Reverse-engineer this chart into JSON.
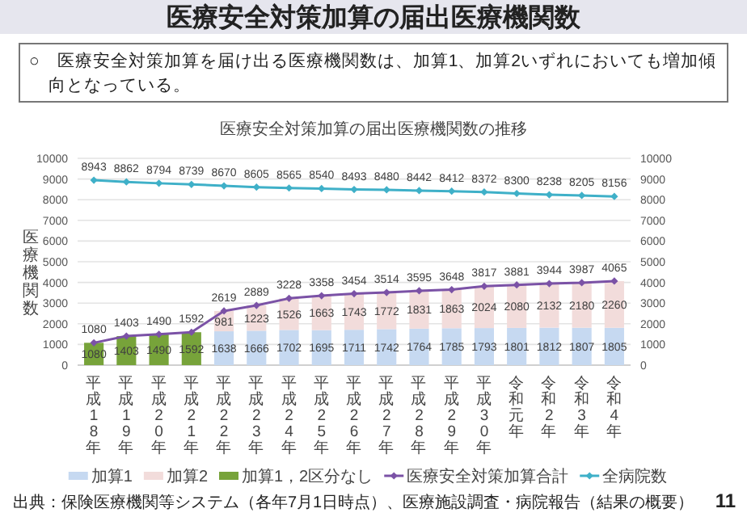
{
  "chart_data": {
    "type": "bar",
    "title": "医療安全対策加算の届出医療機関数",
    "subtitle": "医療安全対策加算の届出医療機関数の推移",
    "annotations": [
      "○　医療安全対策加算を届け出る医療機関数は、加算1、加算2いずれにおいても増加傾向となっている。",
      "出典：保険医療機関等システム（各年7月1日時点）、医療施設調査・病院報告（結果の概要）",
      "11"
    ],
    "ylabel": "医療機関数",
    "categories": [
      "平成18年",
      "平成19年",
      "平成20年",
      "平成21年",
      "平成22年",
      "平成23年",
      "平成24年",
      "平成25年",
      "平成26年",
      "平成27年",
      "平成28年",
      "平成29年",
      "平成30年",
      "令和元年",
      "令和2年",
      "令和3年",
      "令和4年"
    ],
    "stacked": true,
    "data_labels": true,
    "grid": "y",
    "legend": "bottom",
    "marker": "diamond",
    "ylim": [
      0,
      10000
    ],
    "yticks": [
      0,
      1000,
      2000,
      3000,
      4000,
      5000,
      6000,
      7000,
      8000,
      9000,
      10000
    ],
    "y2lim": [
      0,
      10000
    ],
    "y2ticks": [
      0,
      1000,
      2000,
      3000,
      4000,
      5000,
      6000,
      7000,
      8000,
      9000,
      10000
    ],
    "series": [
      {
        "name": "加算1",
        "color": "#c6d9f1",
        "values": [
          null,
          null,
          null,
          null,
          1638,
          1666,
          1702,
          1695,
          1711,
          1742,
          1764,
          1785,
          1793,
          1801,
          1812,
          1807,
          1805
        ]
      },
      {
        "name": "加算2",
        "color": "#f2dcdb",
        "values": [
          null,
          null,
          null,
          null,
          981,
          1223,
          1526,
          1663,
          1743,
          1772,
          1831,
          1863,
          2024,
          2080,
          2132,
          2180,
          2260
        ]
      },
      {
        "name": "加算1，2区分なし",
        "color": "#77a33a",
        "values": [
          1080,
          1403,
          1490,
          1592,
          null,
          null,
          null,
          null,
          null,
          null,
          null,
          null,
          null,
          null,
          null,
          null,
          null
        ]
      },
      {
        "name": "医療安全対策加算合計",
        "type": "line",
        "color": "#7b52a6",
        "values": [
          1080,
          1403,
          1490,
          1592,
          2619,
          2889,
          3228,
          3358,
          3454,
          3514,
          3595,
          3648,
          3817,
          3881,
          3944,
          3987,
          4065
        ]
      },
      {
        "name": "全病院数",
        "type": "line",
        "color": "#3fb0c8",
        "values": [
          8943,
          8862,
          8794,
          8739,
          8670,
          8605,
          8565,
          8540,
          8493,
          8480,
          8442,
          8412,
          8372,
          8300,
          8238,
          8205,
          8156
        ]
      }
    ]
  }
}
